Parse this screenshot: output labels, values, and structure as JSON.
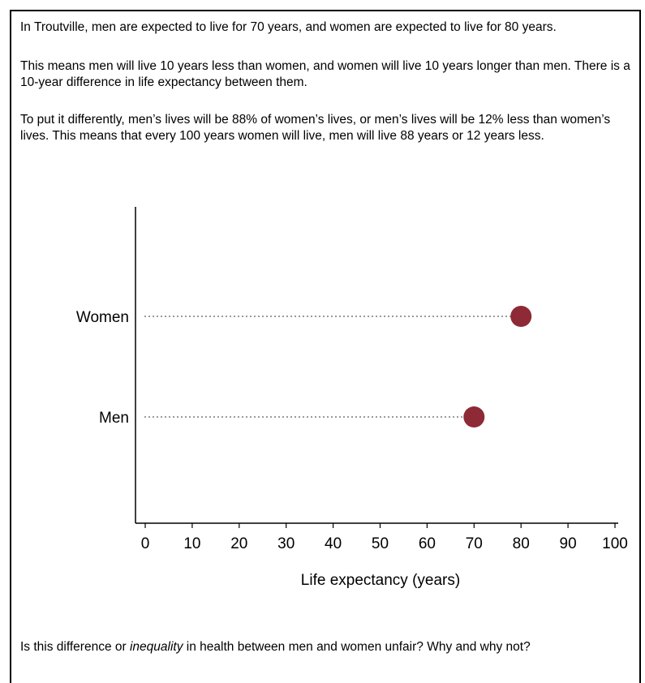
{
  "text": {
    "p1": "In Troutville, men are expected to live for 70 years, and women are expected to live for 80 years.",
    "p2": "This means men will live 10 years less than women, and women will live 10 years longer than men. There is a 10-year difference in life expectancy between them.",
    "p3": "To put it differently, men’s lives will be 88% of women’s lives, or men’s lives will be 12% less than women’s lives. This means that every 100 years women will live, men will live 88 years or 12 years less.",
    "question_before": "Is this difference or ",
    "question_em": "inequality",
    "question_after": " in health between men and women unfair? Why and why not?"
  },
  "chart_data": {
    "type": "scatter",
    "categories": [
      "Women",
      "Men"
    ],
    "values": [
      80,
      70
    ],
    "xlabel": "Life expectancy (years)",
    "ylabel": "",
    "xlim": [
      0,
      100
    ],
    "xticks": [
      0,
      10,
      20,
      30,
      40,
      50,
      60,
      70,
      80,
      90,
      100
    ],
    "marker_color": "#8e2a35",
    "guide_color": "#9a9a9a",
    "grid": false,
    "legend": "none"
  }
}
